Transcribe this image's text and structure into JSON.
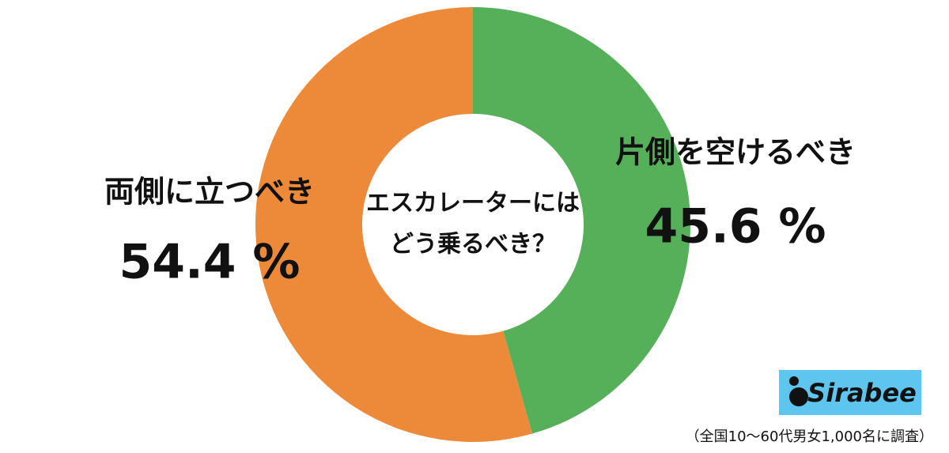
{
  "chart_data": {
    "type": "pie",
    "center_text": [
      "エスカレーターには",
      "どう乗るべき？"
    ],
    "categories": [
      "片側を空けるべき",
      "両側に立つべき"
    ],
    "values": [
      45.6,
      54.4
    ],
    "value_labels": [
      "45.6 %",
      "54.4 %"
    ],
    "colors": [
      "#56b05a",
      "#ec8a3a"
    ],
    "logo": "Sirabee",
    "note": "（全国10〜60代男女1,000名に調査）"
  }
}
